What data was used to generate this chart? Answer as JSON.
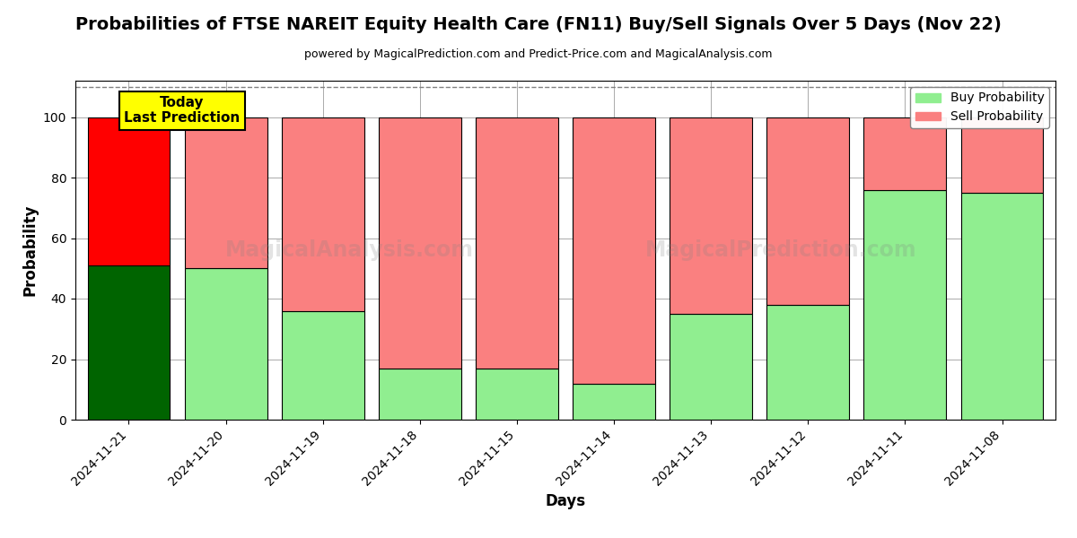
{
  "title": "Probabilities of FTSE NAREIT Equity Health Care (FN11) Buy/Sell Signals Over 5 Days (Nov 22)",
  "subtitle": "powered by MagicalPrediction.com and Predict-Price.com and MagicalAnalysis.com",
  "xlabel": "Days",
  "ylabel": "Probability",
  "dates": [
    "2024-11-21",
    "2024-11-20",
    "2024-11-19",
    "2024-11-18",
    "2024-11-15",
    "2024-11-14",
    "2024-11-13",
    "2024-11-12",
    "2024-11-11",
    "2024-11-08"
  ],
  "buy_values": [
    51,
    50,
    36,
    17,
    17,
    12,
    35,
    38,
    76,
    75
  ],
  "sell_values": [
    49,
    50,
    64,
    83,
    83,
    88,
    65,
    62,
    24,
    25
  ],
  "today_index": 0,
  "today_buy_color": "#006400",
  "today_sell_color": "#FF0000",
  "buy_color": "#90EE90",
  "sell_color": "#FA8080",
  "today_label_bg": "#FFFF00",
  "today_label_text": "Today\nLast Prediction",
  "legend_buy": "Buy Probability",
  "legend_sell": "Sell Probability",
  "ylim": [
    0,
    112
  ],
  "dashed_line_y": 110,
  "bar_width": 0.85,
  "background_color": "#ffffff",
  "grid_color": "#aaaaaa",
  "watermark1": "MagicalAnalysis.com",
  "watermark2": "MagicalPrediction.com"
}
